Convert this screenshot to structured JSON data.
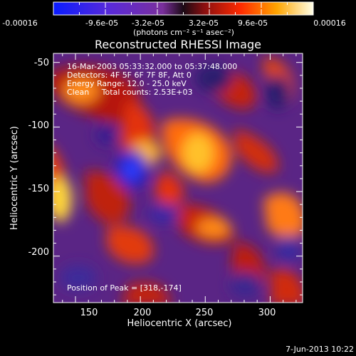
{
  "colorbar": {
    "ticks": [
      "-0.00016",
      "-9.6e-05",
      "-3.2e-05",
      "3.2e-05",
      "9.6e-05",
      "0.00016"
    ],
    "unit_label": "(photons cm⁻² s⁻¹ asec⁻²)"
  },
  "image": {
    "title": "Reconstructed RHESSI Image",
    "info_lines": [
      "16-Mar-2003 05:33:32.000 to 05:37:48.000",
      "Detectors: 4F 5F 6F 7F 8F, Att 0",
      "Energy Range: 12.0 - 25.0 keV",
      "Clean     Total counts: 2.53E+03"
    ],
    "peak_text": "Position of Peak = [318,-174]",
    "xlabel": "Heliocentric X (arcsec)",
    "ylabel": "Heliocentric Y (arcsec)",
    "xticks": [
      "150",
      "200",
      "250",
      "300"
    ],
    "yticks": [
      "-50",
      "-100",
      "-150",
      "-200"
    ],
    "x_range": [
      133,
      325
    ],
    "y_range": [
      -236,
      -43
    ],
    "timestamp": "7-Jun-2013 10:22"
  }
}
